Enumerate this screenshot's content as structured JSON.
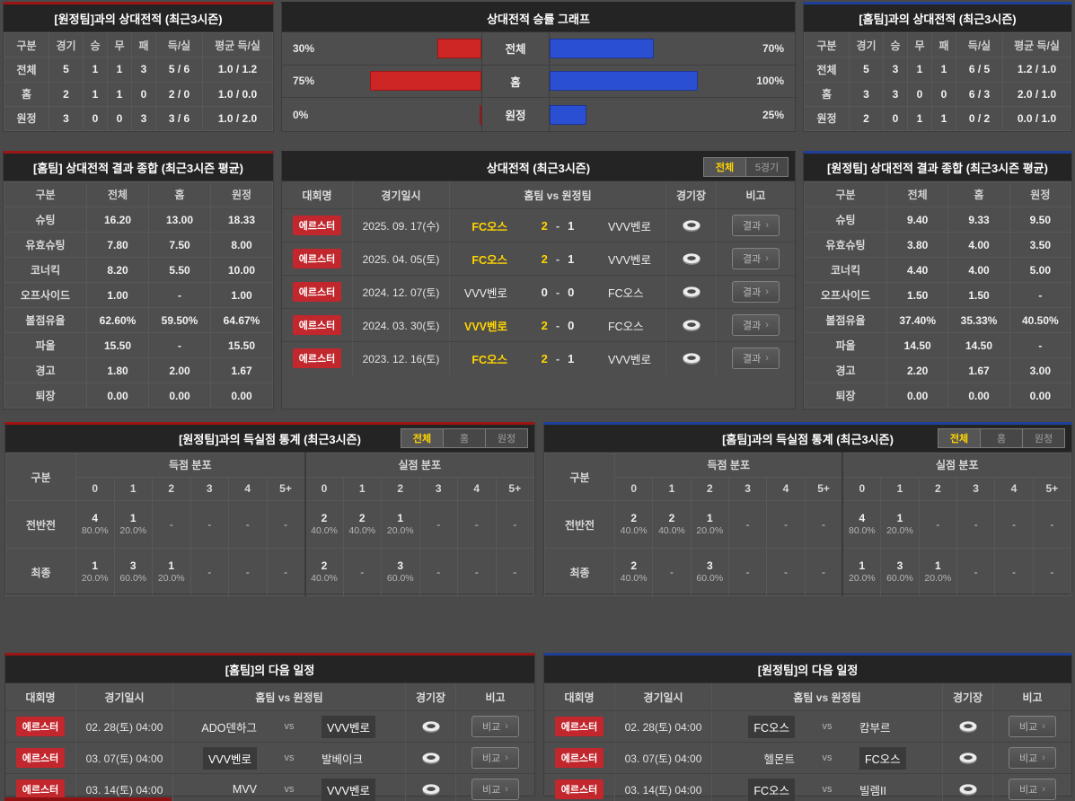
{
  "colors": {
    "accent_red": "#9c1414",
    "accent_blue": "#1e4098",
    "bar_red": "#ce2525",
    "bar_blue": "#2b4fd2",
    "winner_yellow": "#ffd400",
    "badge_red": "#c1272d"
  },
  "icons": {
    "stadium": "stadium-icon",
    "chevron": "›"
  },
  "records": {
    "away": {
      "title": "[원정팀]과의 상대전적 (최근3시즌)",
      "headers": [
        "구분",
        "경기",
        "승",
        "무",
        "패",
        "득/실",
        "평균 득/실"
      ],
      "rows": [
        [
          "전체",
          "5",
          "1",
          "1",
          "3",
          "5 / 6",
          "1.0 / 1.2"
        ],
        [
          "홈",
          "2",
          "1",
          "1",
          "0",
          "2 / 0",
          "1.0 / 0.0"
        ],
        [
          "원정",
          "3",
          "0",
          "0",
          "3",
          "3 / 6",
          "1.0 / 2.0"
        ]
      ]
    },
    "home": {
      "title": "[홈팀]과의 상대전적 (최근3시즌)",
      "headers": [
        "구분",
        "경기",
        "승",
        "무",
        "패",
        "득/실",
        "평균 득/실"
      ],
      "rows": [
        [
          "전체",
          "5",
          "3",
          "1",
          "1",
          "6 / 5",
          "1.2 / 1.0"
        ],
        [
          "홈",
          "3",
          "3",
          "0",
          "0",
          "6 / 3",
          "2.0 / 1.0"
        ],
        [
          "원정",
          "2",
          "0",
          "1",
          "1",
          "0 / 2",
          "0.0 / 1.0"
        ]
      ]
    }
  },
  "chart": {
    "title": "상대전적 승률 그래프",
    "rows": [
      {
        "label": "전체",
        "red_pct": 30,
        "blue_pct": 70,
        "red_text": "30%",
        "blue_text": "70%"
      },
      {
        "label": "홈",
        "red_pct": 75,
        "blue_pct": 100,
        "red_text": "75%",
        "blue_text": "100%"
      },
      {
        "label": "원정",
        "red_pct": 0,
        "blue_pct": 25,
        "red_text": "0%",
        "blue_text": "25%"
      }
    ]
  },
  "chart_data": {
    "type": "bar",
    "title": "상대전적 승률 그래프",
    "categories": [
      "전체",
      "홈",
      "원정"
    ],
    "series": [
      {
        "name": "좌측(적색) 승률",
        "values": [
          30,
          75,
          0
        ]
      },
      {
        "name": "우측(청색) 승률",
        "values": [
          70,
          100,
          25
        ]
      }
    ],
    "unit": "%",
    "xlim": [
      0,
      100
    ],
    "orientation": "horizontal-mirrored"
  },
  "summaries": {
    "home": {
      "title": "[홈팀] 상대전적 결과 종합 (최근3시즌 평균)",
      "headers": [
        "구분",
        "전체",
        "홈",
        "원정"
      ],
      "rows": [
        [
          "슈팅",
          "16.20",
          "13.00",
          "18.33"
        ],
        [
          "유효슈팅",
          "7.80",
          "7.50",
          "8.00"
        ],
        [
          "코너킥",
          "8.20",
          "5.50",
          "10.00"
        ],
        [
          "오프사이드",
          "1.00",
          "-",
          "1.00"
        ],
        [
          "볼점유율",
          "62.60%",
          "59.50%",
          "64.67%"
        ],
        [
          "파울",
          "15.50",
          "-",
          "15.50"
        ],
        [
          "경고",
          "1.80",
          "2.00",
          "1.67"
        ],
        [
          "퇴장",
          "0.00",
          "0.00",
          "0.00"
        ]
      ]
    },
    "away": {
      "title": "[원정팀] 상대전적 결과 종합 (최근3시즌 평균)",
      "headers": [
        "구분",
        "전체",
        "홈",
        "원정"
      ],
      "rows": [
        [
          "슈팅",
          "9.40",
          "9.33",
          "9.50"
        ],
        [
          "유효슈팅",
          "3.80",
          "4.00",
          "3.50"
        ],
        [
          "코너킥",
          "4.40",
          "4.00",
          "5.00"
        ],
        [
          "오프사이드",
          "1.50",
          "1.50",
          "-"
        ],
        [
          "볼점유율",
          "37.40%",
          "35.33%",
          "40.50%"
        ],
        [
          "파울",
          "14.50",
          "14.50",
          "-"
        ],
        [
          "경고",
          "2.20",
          "1.67",
          "3.00"
        ],
        [
          "퇴장",
          "0.00",
          "0.00",
          "0.00"
        ]
      ]
    }
  },
  "matches": {
    "title": "상대전적 (최근3시즌)",
    "tabs": [
      "전체",
      "5경기"
    ],
    "active_tab": 0,
    "headers": [
      "대회명",
      "경기일시",
      "홈팀  vs  원정팀",
      "경기장",
      "비고"
    ],
    "button": "결과",
    "rows": [
      {
        "league": "에르스터",
        "date": "2025. 09. 17(수)",
        "home": "FC오스",
        "hs": "2",
        "as": "1",
        "away": "VVV벤로",
        "winner": "home"
      },
      {
        "league": "에르스터",
        "date": "2025. 04. 05(토)",
        "home": "FC오스",
        "hs": "2",
        "as": "1",
        "away": "VVV벤로",
        "winner": "home"
      },
      {
        "league": "에르스터",
        "date": "2024. 12. 07(토)",
        "home": "VVV벤로",
        "hs": "0",
        "as": "0",
        "away": "FC오스",
        "winner": "draw"
      },
      {
        "league": "에르스터",
        "date": "2024. 03. 30(토)",
        "home": "VVV벤로",
        "hs": "2",
        "as": "0",
        "away": "FC오스",
        "winner": "home"
      },
      {
        "league": "에르스터",
        "date": "2023. 12. 16(토)",
        "home": "FC오스",
        "hs": "2",
        "as": "1",
        "away": "VVV벤로",
        "winner": "home"
      }
    ]
  },
  "goalStats": {
    "left": {
      "title": "[원정팀]과의 득실점 통계 (최근3시즌)",
      "tabs": [
        "전체",
        "홈",
        "원정"
      ],
      "active_tab": 0,
      "col_label": "구분",
      "group1": "득점 분포",
      "group2": "실점 분포",
      "bins": [
        "0",
        "1",
        "2",
        "3",
        "4",
        "5+"
      ],
      "rows": [
        {
          "label": "전반전",
          "scored": [
            [
              "4",
              "80.0%"
            ],
            [
              "1",
              "20.0%"
            ],
            null,
            null,
            null,
            null
          ],
          "conceded": [
            [
              "2",
              "40.0%"
            ],
            [
              "2",
              "40.0%"
            ],
            [
              "1",
              "20.0%"
            ],
            null,
            null,
            null
          ]
        },
        {
          "label": "최종",
          "scored": [
            [
              "1",
              "20.0%"
            ],
            [
              "3",
              "60.0%"
            ],
            [
              "1",
              "20.0%"
            ],
            null,
            null,
            null
          ],
          "conceded": [
            [
              "2",
              "40.0%"
            ],
            null,
            [
              "3",
              "60.0%"
            ],
            null,
            null,
            null
          ]
        }
      ]
    },
    "right": {
      "title": "[홈팀]과의 득실점 통계 (최근3시즌)",
      "tabs": [
        "전체",
        "홈",
        "원정"
      ],
      "active_tab": 0,
      "col_label": "구분",
      "group1": "득점 분포",
      "group2": "실점 분포",
      "bins": [
        "0",
        "1",
        "2",
        "3",
        "4",
        "5+"
      ],
      "rows": [
        {
          "label": "전반전",
          "scored": [
            [
              "2",
              "40.0%"
            ],
            [
              "2",
              "40.0%"
            ],
            [
              "1",
              "20.0%"
            ],
            null,
            null,
            null
          ],
          "conceded": [
            [
              "4",
              "80.0%"
            ],
            [
              "1",
              "20.0%"
            ],
            null,
            null,
            null,
            null
          ]
        },
        {
          "label": "최종",
          "scored": [
            [
              "2",
              "40.0%"
            ],
            null,
            [
              "3",
              "60.0%"
            ],
            null,
            null,
            null
          ],
          "conceded": [
            [
              "1",
              "20.0%"
            ],
            [
              "3",
              "60.0%"
            ],
            [
              "1",
              "20.0%"
            ],
            null,
            null,
            null
          ]
        }
      ]
    }
  },
  "schedules": {
    "button": "비교",
    "headers": [
      "대회명",
      "경기일시",
      "홈팀  vs  원정팀",
      "경기장",
      "비고"
    ],
    "home": {
      "title": "[홈팀]의 다음 일정",
      "rows": [
        {
          "league": "에르스터",
          "date": "02. 28(토) 04:00",
          "home": "ADO덴하그",
          "away": "VVV벤로",
          "focus": "away"
        },
        {
          "league": "에르스터",
          "date": "03. 07(토) 04:00",
          "home": "VVV벤로",
          "away": "발베이크",
          "focus": "home"
        },
        {
          "league": "에르스터",
          "date": "03. 14(토) 04:00",
          "home": "MVV",
          "away": "VVV벤로",
          "focus": "away"
        }
      ]
    },
    "away": {
      "title": "[원정팀]의 다음 일정",
      "rows": [
        {
          "league": "에르스터",
          "date": "02. 28(토) 04:00",
          "home": "FC오스",
          "away": "캄부르",
          "focus": "home"
        },
        {
          "league": "에르스터",
          "date": "03. 07(토) 04:00",
          "home": "헬몬트",
          "away": "FC오스",
          "focus": "away"
        },
        {
          "league": "에르스터",
          "date": "03. 14(토) 04:00",
          "home": "FC오스",
          "away": "빌렘II",
          "focus": "home"
        }
      ]
    }
  }
}
